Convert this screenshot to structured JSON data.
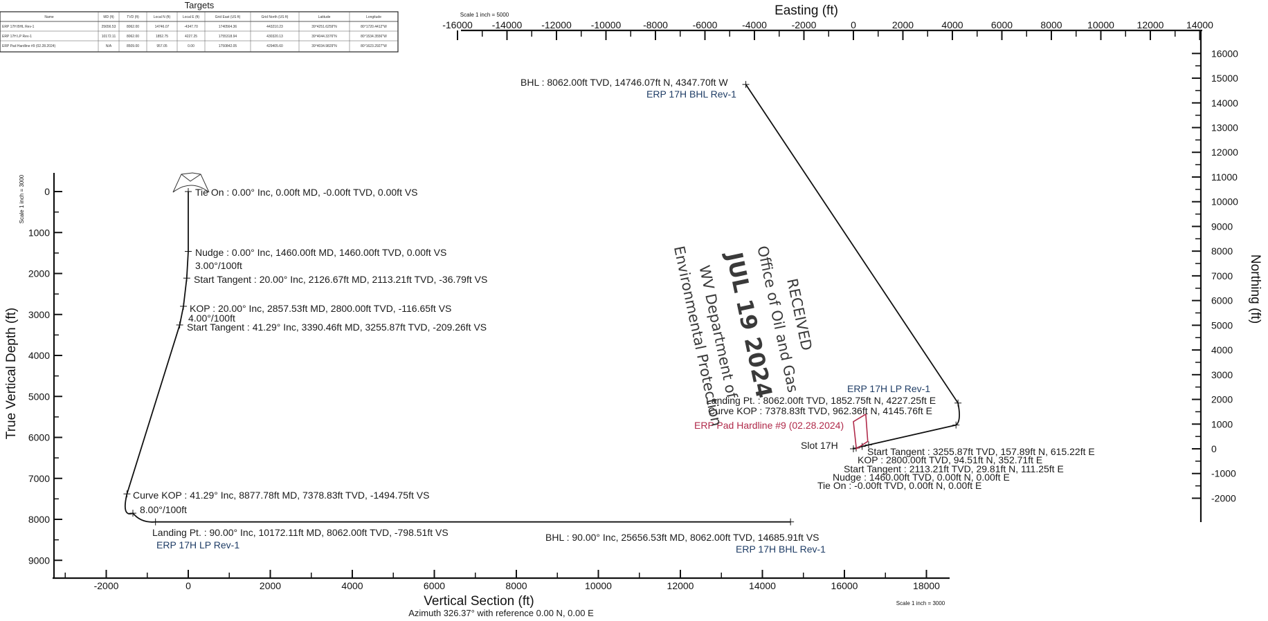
{
  "targets_table": {
    "title": "Targets",
    "headers": [
      "Name",
      "MD (ft)",
      "TVD (ft)",
      "Local N (ft)",
      "Local E (ft)",
      "Grid East (US ft)",
      "Grid North (US ft)",
      "Latitude",
      "Longitude"
    ],
    "rows": [
      [
        "ERP 17H BHL Rev-1",
        "25656.53",
        "8062.00",
        "14746.07",
        "-4347.70",
        "1740564.36",
        "443210.23",
        "39°4251.6259\"N",
        "80°1720.4412\"W"
      ],
      [
        "ERP 17H LP Rev-1",
        "10172.11",
        "8062.00",
        "1852.75",
        "4227.25",
        "1755318.94",
        "430320.13",
        "39°4044.3376\"N",
        "80°1534.3556\"W"
      ],
      [
        "ERP Pad Hardline #9 (02.28.2024)",
        "N/A",
        "8509.00",
        "957.05",
        "0.00",
        "1750842.05",
        "429405.60",
        "39°4034.9829\"N",
        "80°1623.2927\"W"
      ]
    ]
  },
  "vertical_section": {
    "scale_note": "Scale 1 inch = 3000",
    "bottom_scale_note": "Scale 1 inch = 3000",
    "xlabel": "Vertical Section (ft)",
    "ylabel": "True Vertical Depth (ft)",
    "azimuth_note": "Azimuth 326.37° with reference 0.00 N, 0.00 E",
    "x_ticks": [
      "-2000",
      "0",
      "2000",
      "4000",
      "6000",
      "8000",
      "10000",
      "12000",
      "14000",
      "16000",
      "18000"
    ],
    "y_ticks": [
      "0",
      "1000",
      "2000",
      "3000",
      "4000",
      "5000",
      "6000",
      "7000",
      "8000",
      "9000"
    ],
    "annotations": {
      "tie_on": "Tie On : 0.00° Inc, 0.00ft MD, -0.00ft TVD, 0.00ft VS",
      "nudge": "Nudge : 0.00° Inc, 1460.00ft MD, 1460.00ft TVD, 0.00ft VS",
      "dls1": "3.00°/100ft",
      "start_tangent1": "Start Tangent  : 20.00° Inc, 2126.67ft MD, 2113.21ft TVD, -36.79ft VS",
      "kop": "KOP : 20.00° Inc, 2857.53ft MD, 2800.00ft TVD, -116.65ft VS",
      "dls2": "4.00°/100ft",
      "start_tangent2": "Start Tangent  : 41.29° Inc, 3390.46ft MD, 3255.87ft TVD, -209.26ft VS",
      "curve_kop": "Curve KOP : 41.29° Inc, 8877.78ft MD, 7378.83ft TVD, -1494.75ft VS",
      "dls3": "8.00°/100ft",
      "landing": "Landing Pt. : 90.00° Inc, 10172.11ft MD, 8062.00ft TVD, -798.51ft VS",
      "lp_target": "ERP 17H LP Rev-1",
      "bhl": "BHL : 90.00° Inc, 25656.53ft MD, 8062.00ft TVD, 14685.91ft VS",
      "bhl_target": "ERP 17H BHL Rev-1"
    }
  },
  "plan_view": {
    "scale_note": "Scale 1 inch = 5000",
    "xlabel": "Easting (ft)",
    "ylabel": "Northing (ft)",
    "x_ticks": [
      "-16000",
      "-14000",
      "-12000",
      "-10000",
      "-8000",
      "-6000",
      "-4000",
      "-2000",
      "0",
      "2000",
      "4000",
      "6000",
      "8000",
      "10000",
      "12000",
      "14000"
    ],
    "y_ticks": [
      "16000",
      "15000",
      "14000",
      "13000",
      "12000",
      "11000",
      "10000",
      "9000",
      "8000",
      "7000",
      "6000",
      "5000",
      "4000",
      "3000",
      "2000",
      "1000",
      "0",
      "-1000",
      "-2000"
    ],
    "annotations": {
      "bhl": "BHL : 8062.00ft TVD, 14746.07ft N, 4347.70ft W",
      "bhl_target": "ERP 17H BHL Rev-1",
      "lp_target": "ERP 17H LP Rev-1",
      "landing": "Landing Pt. : 8062.00ft TVD, 1852.75ft N, 4227.25ft E",
      "curve_kop": "Curve KOP : 7378.83ft TVD, 962.36ft N, 4145.76ft E",
      "hardline": "ERP Pad Hardline #9 (02.28.2024)",
      "slot": "Slot 17H",
      "start_tangent2": "Start Tangent  : 3255.87ft TVD, 157.89ft N, 615.22ft E",
      "kop": "KOP : 2800.00ft TVD, 94.51ft N, 352.71ft E",
      "start_tangent1": "Start Tangent  : 2113.21ft TVD, 29.81ft N, 111.25ft E",
      "nudge": "Nudge : 1460.00ft TVD, 0.00ft N, 0.00ft E",
      "tie_on": "Tie On : -0.00ft TVD, 0.00ft N, 0.00ft E"
    }
  },
  "stamp": {
    "line1": "RECEIVED",
    "line2": "Office of Oil and Gas",
    "date": "JUL 19 2024",
    "line3": "WV Department of",
    "line4": "Environmental Protection"
  },
  "chart_data": [
    {
      "type": "line",
      "title": "",
      "xlabel": "Vertical Section (ft)",
      "ylabel": "True Vertical Depth (ft)",
      "xlim": [
        -3300,
        18700
      ],
      "ylim": [
        9400,
        -500
      ],
      "y_inverted": true,
      "series": [
        {
          "x": [
            0,
            0,
            -37,
            -117,
            -209,
            -1495,
            -1350,
            -799,
            14686
          ],
          "y": [
            0,
            1460,
            2113,
            2800,
            3256,
            7379,
            7850,
            8062,
            8062
          ]
        }
      ]
    },
    {
      "type": "line",
      "title": "",
      "xlabel": "Easting (ft)",
      "ylabel": "Northing (ft)",
      "xlim": [
        -16500,
        14000
      ],
      "ylim": [
        -2300,
        16700
      ],
      "series": [
        {
          "x": [
            0,
            0,
            111,
            353,
            615,
            4146,
            4227,
            -4348
          ],
          "y": [
            0,
            0,
            30,
            95,
            158,
            962,
            1853,
            14746
          ]
        }
      ],
      "hardline_polygon": {
        "x": [
          120,
          580,
          500,
          0
        ],
        "y": [
          0,
          300,
          1400,
          1100
        ]
      }
    }
  ]
}
